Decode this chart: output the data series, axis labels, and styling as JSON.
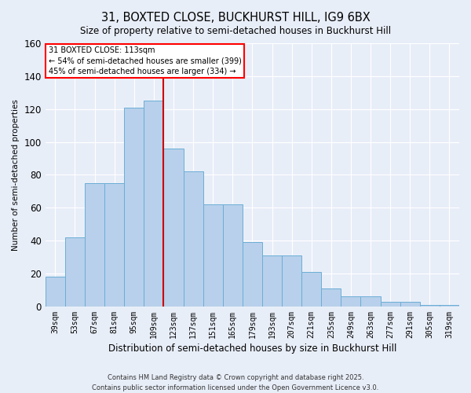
{
  "title": "31, BOXTED CLOSE, BUCKHURST HILL, IG9 6BX",
  "subtitle": "Size of property relative to semi-detached houses in Buckhurst Hill",
  "xlabel": "Distribution of semi-detached houses by size in Buckhurst Hill",
  "ylabel": "Number of semi-detached properties",
  "footer_line1": "Contains HM Land Registry data © Crown copyright and database right 2025.",
  "footer_line2": "Contains public sector information licensed under the Open Government Licence v3.0.",
  "categories": [
    "39sqm",
    "53sqm",
    "67sqm",
    "81sqm",
    "95sqm",
    "109sqm",
    "123sqm",
    "137sqm",
    "151sqm",
    "165sqm",
    "179sqm",
    "193sqm",
    "207sqm",
    "221sqm",
    "235sqm",
    "249sqm",
    "263sqm",
    "277sqm",
    "291sqm",
    "305sqm",
    "319sqm"
  ],
  "values": [
    18,
    42,
    75,
    75,
    121,
    125,
    96,
    82,
    62,
    62,
    39,
    31,
    31,
    21,
    11,
    6,
    6,
    3,
    3,
    1,
    1
  ],
  "bar_color": "#b8d0eb",
  "bar_edge_color": "#6aaed6",
  "background_color": "#e8eef8",
  "annotation_text": "31 BOXTED CLOSE: 113sqm\n← 54% of semi-detached houses are smaller (399)\n45% of semi-detached houses are larger (334) →",
  "ylim": [
    0,
    160
  ],
  "yticks": [
    0,
    20,
    40,
    60,
    80,
    100,
    120,
    140,
    160
  ],
  "grid_color": "#ffffff",
  "vline_color": "#cc0000"
}
